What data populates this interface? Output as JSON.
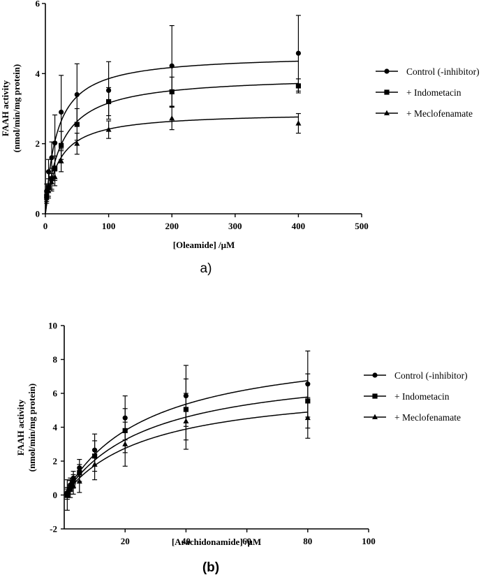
{
  "chart_data": [
    {
      "type": "scatter",
      "panel_label": "a)",
      "xlabel": "[Oleamide] /μM",
      "ylabel_lines": [
        "FAAH activity",
        "(nmol/min/mg protein)"
      ],
      "xlim": [
        0,
        500
      ],
      "ylim": [
        0,
        6
      ],
      "xticks": [
        0,
        100,
        200,
        300,
        400,
        500
      ],
      "yticks": [
        0,
        2,
        4,
        6
      ],
      "grid": false,
      "legend_position": "right",
      "series": [
        {
          "name": "Control (-inhibitor)",
          "marker": "circle",
          "x": [
            2,
            5,
            10,
            15,
            25,
            50,
            100,
            200,
            400
          ],
          "y": [
            0.65,
            1.2,
            1.6,
            2.02,
            2.9,
            3.4,
            3.52,
            4.22,
            4.58
          ],
          "err": [
            0.2,
            0.35,
            0.45,
            0.8,
            1.05,
            0.88,
            0.82,
            1.15,
            1.08
          ],
          "fit": {
            "model": "michaelis-menten",
            "vmax": 4.55,
            "km": 18
          }
        },
        {
          "name": "+ Indometacin",
          "marker": "square",
          "x": [
            2,
            5,
            10,
            15,
            25,
            50,
            100,
            200,
            400
          ],
          "y": [
            0.5,
            0.75,
            1.0,
            1.3,
            1.95,
            2.55,
            3.2,
            3.48,
            3.65
          ],
          "err": [
            0.15,
            0.25,
            0.3,
            0.35,
            0.4,
            0.45,
            0.4,
            0.42,
            0.2
          ],
          "fit": {
            "model": "michaelis-menten",
            "vmax": 3.95,
            "km": 25
          }
        },
        {
          "name": "+ Meclofenamate",
          "marker": "triangle",
          "x": [
            2,
            5,
            10,
            15,
            25,
            50,
            100,
            200,
            400
          ],
          "y": [
            0.45,
            0.65,
            0.9,
            1.05,
            1.5,
            2.0,
            2.4,
            2.72,
            2.58
          ],
          "err": [
            0.15,
            0.2,
            0.25,
            0.25,
            0.3,
            0.3,
            0.25,
            0.32,
            0.28
          ],
          "fit": {
            "model": "michaelis-menten",
            "vmax": 2.9,
            "km": 20
          }
        }
      ]
    },
    {
      "type": "scatter",
      "panel_label": "(b)",
      "xlabel": "[Arachidonamide] /μM",
      "ylabel_lines": [
        "FAAH activity",
        "(nmol/min/mg protein)"
      ],
      "xlim": [
        0,
        100
      ],
      "ylim": [
        -2,
        10
      ],
      "xticks": [
        20,
        40,
        60,
        80,
        100
      ],
      "yticks": [
        -2,
        0,
        2,
        4,
        6,
        8,
        10
      ],
      "grid": false,
      "legend_position": "right",
      "series": [
        {
          "name": "Control (-inhibitor)",
          "marker": "circle",
          "x": [
            1,
            2,
            3,
            5,
            10,
            20,
            40,
            80
          ],
          "y": [
            0.15,
            0.6,
            1.0,
            1.6,
            2.65,
            4.55,
            5.85,
            6.55
          ],
          "err": [
            0.3,
            0.4,
            0.4,
            0.5,
            0.95,
            1.3,
            1.8,
            1.95
          ],
          "fit": {
            "model": "michaelis-menten",
            "vmax": 9.1,
            "km": 27.9
          }
        },
        {
          "name": "+ Indometacin",
          "marker": "square",
          "x": [
            1,
            2,
            3,
            5,
            10,
            20,
            40,
            80
          ],
          "y": [
            0.05,
            0.45,
            0.8,
            1.3,
            2.3,
            3.8,
            5.05,
            5.55
          ],
          "err": [
            0.3,
            0.4,
            0.4,
            0.5,
            0.9,
            1.3,
            1.8,
            1.6
          ],
          "fit": {
            "model": "michaelis-menten",
            "vmax": 7.8,
            "km": 27.9
          }
        },
        {
          "name": "+ Meclofenamate",
          "marker": "triangle",
          "x": [
            1,
            2,
            3,
            5,
            10,
            20,
            40,
            80
          ],
          "y": [
            0.0,
            0.35,
            0.55,
            0.8,
            1.8,
            3.0,
            4.35,
            4.55
          ],
          "err": [
            0.9,
            0.5,
            0.5,
            0.65,
            0.9,
            1.3,
            1.65,
            1.2
          ],
          "fit": {
            "model": "michaelis-menten",
            "vmax": 6.6,
            "km": 27.9
          }
        }
      ]
    }
  ]
}
